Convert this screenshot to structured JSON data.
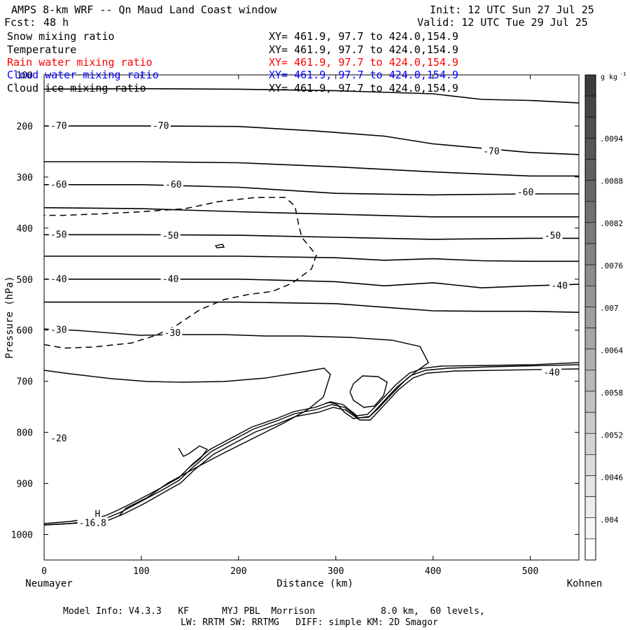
{
  "header": {
    "title": "AMPS 8-km WRF -- Qn Maud Land Coast window",
    "fcst_label": "Fcst:",
    "fcst_value": "48 h",
    "init": "Init: 12 UTC Sun 27 Jul 25",
    "valid": "Valid: 12 UTC Tue 29 Jul 25"
  },
  "fields": [
    {
      "name": "Snow mixing ratio",
      "xy": "XY= 461.9, 97.7 to 424.0,154.9",
      "color": "#000000"
    },
    {
      "name": "Temperature",
      "xy": "XY= 461.9, 97.7 to 424.0,154.9",
      "color": "#000000"
    },
    {
      "name": "Rain water mixing ratio",
      "xy": "XY= 461.9, 97.7 to 424.0,154.9",
      "color": "#ff0000"
    },
    {
      "name": "Cloud water mixing ratio",
      "xy": "XY= 461.9, 97.7 to 424.0,154.9",
      "color": "#0000ff"
    },
    {
      "name": "Cloud ice mixing ratio",
      "xy": "XY= 461.9, 97.7 to 424.0,154.9",
      "color": "#000000"
    }
  ],
  "footer": {
    "model_info": "Model Info: V4.3.3   KF      MYJ PBL  Morrison            8.0 km,  60 levels,",
    "physics": "LW: RRTM SW: RRTMG   DIFF: simple KM: 2D Smagor"
  },
  "chart_data": {
    "type": "contour",
    "xlabel": "Distance (km)",
    "ylabel": "Pressure (hPa)",
    "x_start_label": "Neumayer",
    "x_end_label": "Kohnen",
    "xlim": [
      0,
      550
    ],
    "ylim": [
      1050,
      100
    ],
    "x_ticks": [
      0,
      100,
      200,
      300,
      400,
      500
    ],
    "y_ticks": [
      100,
      200,
      300,
      400,
      500,
      600,
      700,
      800,
      900,
      1000
    ],
    "colorbar": {
      "unit": "g kg",
      "unit_exponent": "-1",
      "labels": [
        ".0094",
        ".0088",
        ".0082",
        ".0076",
        ".007",
        ".0064",
        ".0058",
        ".0052",
        ".0046",
        ".004"
      ]
    },
    "temperature_labels": [
      {
        "text": "-70",
        "x": 15,
        "p": 200
      },
      {
        "text": "-70",
        "x": 120,
        "p": 200
      },
      {
        "text": "-70",
        "x": 460,
        "p": 250
      },
      {
        "text": "-60",
        "x": 15,
        "p": 315
      },
      {
        "text": "-60",
        "x": 133,
        "p": 315
      },
      {
        "text": "-60",
        "x": 495,
        "p": 330
      },
      {
        "text": "-50",
        "x": 15,
        "p": 413
      },
      {
        "text": "-50",
        "x": 130,
        "p": 415
      },
      {
        "text": "-50",
        "x": 523,
        "p": 415
      },
      {
        "text": "-40",
        "x": 15,
        "p": 500
      },
      {
        "text": "-40",
        "x": 130,
        "p": 500
      },
      {
        "text": "-40",
        "x": 530,
        "p": 513
      },
      {
        "text": "-30",
        "x": 15,
        "p": 600
      },
      {
        "text": "-30",
        "x": 132,
        "p": 606
      },
      {
        "text": "-20",
        "x": 15,
        "p": 812
      },
      {
        "text": "-16.8",
        "x": 50,
        "p": 978
      },
      {
        "text": "H",
        "x": 55,
        "p": 960
      },
      {
        "text": "-40",
        "x": 522,
        "p": 683
      }
    ],
    "isotherms": [
      [
        [
          0,
          128
        ],
        [
          100,
          127
        ],
        [
          200,
          128
        ],
        [
          300,
          131
        ],
        [
          400,
          137
        ],
        [
          450,
          148
        ],
        [
          500,
          150
        ],
        [
          550,
          155
        ]
      ],
      [
        [
          0,
          200
        ],
        [
          100,
          200
        ],
        [
          200,
          201
        ],
        [
          280,
          210
        ],
        [
          350,
          220
        ],
        [
          400,
          235
        ],
        [
          500,
          252
        ],
        [
          550,
          256
        ]
      ],
      [
        [
          0,
          270
        ],
        [
          100,
          270
        ],
        [
          200,
          272
        ],
        [
          300,
          280
        ],
        [
          400,
          290
        ],
        [
          500,
          298
        ],
        [
          550,
          298
        ]
      ],
      [
        [
          0,
          315
        ],
        [
          100,
          315
        ],
        [
          200,
          320
        ],
        [
          300,
          332
        ],
        [
          400,
          335
        ],
        [
          500,
          333
        ],
        [
          550,
          333
        ]
      ],
      [
        [
          0,
          360
        ],
        [
          100,
          362
        ],
        [
          200,
          368
        ],
        [
          300,
          373
        ],
        [
          400,
          378
        ],
        [
          550,
          378
        ]
      ],
      [
        [
          0,
          413
        ],
        [
          100,
          413
        ],
        [
          200,
          414
        ],
        [
          300,
          418
        ],
        [
          400,
          422
        ],
        [
          500,
          420
        ],
        [
          550,
          420
        ]
      ],
      [
        [
          0,
          455
        ],
        [
          100,
          455
        ],
        [
          200,
          455
        ],
        [
          300,
          458
        ],
        [
          350,
          463
        ],
        [
          400,
          460
        ],
        [
          450,
          464
        ],
        [
          500,
          465
        ],
        [
          550,
          465
        ]
      ],
      [
        [
          0,
          500
        ],
        [
          100,
          500
        ],
        [
          200,
          500
        ],
        [
          300,
          505
        ],
        [
          350,
          513
        ],
        [
          400,
          507
        ],
        [
          450,
          517
        ],
        [
          500,
          513
        ],
        [
          550,
          510
        ]
      ],
      [
        [
          0,
          545
        ],
        [
          100,
          545
        ],
        [
          200,
          545
        ],
        [
          300,
          548
        ],
        [
          350,
          555
        ],
        [
          400,
          562
        ],
        [
          450,
          563
        ],
        [
          500,
          563
        ],
        [
          550,
          565
        ]
      ]
    ],
    "cloud_ice_contour": [
      [
        0,
        628
      ],
      [
        20,
        635
      ],
      [
        50,
        633
      ],
      [
        90,
        625
      ],
      [
        115,
        610
      ],
      [
        135,
        592
      ],
      [
        160,
        560
      ],
      [
        185,
        540
      ],
      [
        210,
        530
      ],
      [
        235,
        524
      ],
      [
        255,
        508
      ],
      [
        275,
        480
      ],
      [
        280,
        453
      ],
      [
        265,
        418
      ],
      [
        262,
        395
      ],
      [
        258,
        357
      ],
      [
        248,
        340
      ],
      [
        218,
        340
      ],
      [
        180,
        348
      ],
      [
        145,
        362
      ],
      [
        100,
        368
      ],
      [
        60,
        372
      ],
      [
        20,
        375
      ],
      [
        0,
        375
      ]
    ]
  }
}
